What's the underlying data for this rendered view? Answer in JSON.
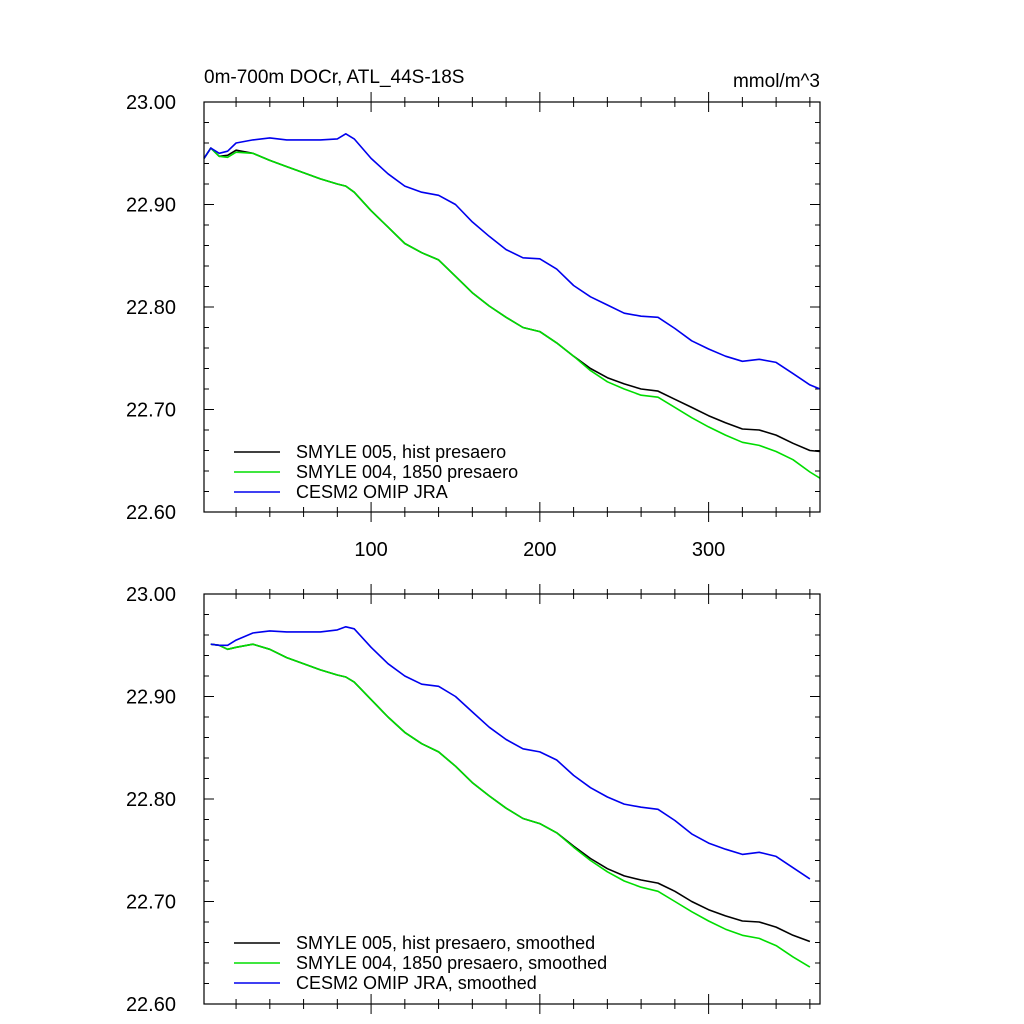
{
  "chart_data": [
    {
      "type": "line",
      "title": "0m-700m DOCr, ATL_44S-18S",
      "units": "mmol/m^3",
      "xlim": [
        1,
        366
      ],
      "ylim": [
        22.6,
        23.0
      ],
      "x_major_ticks": [
        100,
        200,
        300
      ],
      "x_tick_labels": [
        "100",
        "200",
        "300"
      ],
      "y_major_ticks": [
        22.6,
        22.7,
        22.8,
        22.9,
        23.0
      ],
      "y_tick_labels": [
        "22.60",
        "22.70",
        "22.80",
        "22.90",
        "23.00"
      ],
      "grid": false,
      "legend_position": "bottom-left",
      "series": [
        {
          "name": "SMYLE 005, hist presaero",
          "color": "#000000",
          "x": [
            1,
            5,
            10,
            15,
            20,
            30,
            40,
            50,
            60,
            70,
            80,
            85,
            90,
            100,
            110,
            120,
            130,
            140,
            150,
            160,
            170,
            180,
            190,
            200,
            210,
            220,
            230,
            240,
            250,
            260,
            270,
            280,
            290,
            300,
            310,
            320,
            330,
            340,
            350,
            360,
            366
          ],
          "y": [
            22.945,
            22.955,
            22.947,
            22.948,
            22.953,
            22.95,
            22.943,
            22.937,
            22.931,
            22.925,
            22.92,
            22.918,
            22.912,
            22.894,
            22.878,
            22.862,
            22.853,
            22.846,
            22.83,
            22.814,
            22.801,
            22.79,
            22.78,
            22.776,
            22.765,
            22.752,
            22.74,
            22.731,
            22.725,
            22.72,
            22.718,
            22.71,
            22.702,
            22.694,
            22.687,
            22.681,
            22.68,
            22.675,
            22.667,
            22.66,
            22.659
          ]
        },
        {
          "name": "SMYLE 004, 1850 presaero",
          "color": "#00dd00",
          "x": [
            1,
            5,
            10,
            15,
            20,
            30,
            40,
            50,
            60,
            70,
            80,
            85,
            90,
            100,
            110,
            120,
            130,
            140,
            150,
            160,
            170,
            180,
            190,
            200,
            210,
            220,
            230,
            240,
            250,
            260,
            270,
            280,
            290,
            300,
            310,
            320,
            330,
            340,
            350,
            360,
            366
          ],
          "y": [
            22.945,
            22.955,
            22.947,
            22.946,
            22.951,
            22.95,
            22.943,
            22.937,
            22.931,
            22.925,
            22.92,
            22.918,
            22.912,
            22.894,
            22.878,
            22.862,
            22.853,
            22.846,
            22.83,
            22.814,
            22.801,
            22.79,
            22.78,
            22.776,
            22.765,
            22.752,
            22.738,
            22.727,
            22.72,
            22.714,
            22.712,
            22.702,
            22.692,
            22.683,
            22.675,
            22.668,
            22.665,
            22.659,
            22.651,
            22.639,
            22.633
          ]
        },
        {
          "name": "CESM2 OMIP JRA",
          "color": "#0000ee",
          "x": [
            1,
            5,
            10,
            15,
            20,
            30,
            40,
            50,
            60,
            70,
            80,
            85,
            90,
            100,
            110,
            120,
            130,
            140,
            150,
            160,
            170,
            180,
            190,
            200,
            210,
            220,
            230,
            240,
            250,
            260,
            270,
            280,
            290,
            300,
            310,
            320,
            330,
            340,
            350,
            360,
            366
          ],
          "y": [
            22.945,
            22.955,
            22.95,
            22.952,
            22.96,
            22.963,
            22.965,
            22.963,
            22.963,
            22.963,
            22.964,
            22.969,
            22.964,
            22.945,
            22.93,
            22.918,
            22.912,
            22.909,
            22.9,
            22.883,
            22.869,
            22.856,
            22.848,
            22.847,
            22.837,
            22.821,
            22.81,
            22.802,
            22.794,
            22.791,
            22.79,
            22.779,
            22.767,
            22.759,
            22.752,
            22.747,
            22.749,
            22.746,
            22.735,
            22.724,
            22.72
          ]
        }
      ]
    },
    {
      "type": "line",
      "xlim": [
        1,
        366
      ],
      "ylim": [
        22.6,
        23.0
      ],
      "x_major_ticks": [
        100,
        200,
        300
      ],
      "y_major_ticks": [
        22.6,
        22.7,
        22.8,
        22.9,
        23.0
      ],
      "y_tick_labels": [
        "22.60",
        "22.70",
        "22.80",
        "22.90",
        "23.00"
      ],
      "grid": false,
      "legend_position": "bottom-left",
      "series": [
        {
          "name": "SMYLE 005, hist presaero, smoothed",
          "color": "#000000",
          "x": [
            5,
            10,
            15,
            20,
            30,
            40,
            50,
            60,
            70,
            80,
            85,
            90,
            100,
            110,
            120,
            130,
            140,
            150,
            160,
            170,
            180,
            190,
            200,
            210,
            220,
            230,
            240,
            250,
            260,
            270,
            280,
            290,
            300,
            310,
            320,
            330,
            340,
            350,
            360
          ],
          "y": [
            22.951,
            22.95,
            22.946,
            22.948,
            22.951,
            22.946,
            22.938,
            22.932,
            22.926,
            22.921,
            22.919,
            22.914,
            22.897,
            22.88,
            22.865,
            22.854,
            22.846,
            22.832,
            22.816,
            22.803,
            22.791,
            22.781,
            22.776,
            22.767,
            22.754,
            22.742,
            22.732,
            22.725,
            22.721,
            22.718,
            22.71,
            22.7,
            22.692,
            22.686,
            22.681,
            22.68,
            22.675,
            22.667,
            22.661
          ]
        },
        {
          "name": "SMYLE 004, 1850 presaero, smoothed",
          "color": "#00dd00",
          "x": [
            5,
            10,
            15,
            20,
            30,
            40,
            50,
            60,
            70,
            80,
            85,
            90,
            100,
            110,
            120,
            130,
            140,
            150,
            160,
            170,
            180,
            190,
            200,
            210,
            220,
            230,
            240,
            250,
            260,
            270,
            280,
            290,
            300,
            310,
            320,
            330,
            340,
            350,
            360
          ],
          "y": [
            22.951,
            22.95,
            22.946,
            22.948,
            22.951,
            22.946,
            22.938,
            22.932,
            22.926,
            22.921,
            22.919,
            22.914,
            22.897,
            22.88,
            22.865,
            22.854,
            22.846,
            22.832,
            22.816,
            22.803,
            22.791,
            22.781,
            22.776,
            22.767,
            22.753,
            22.74,
            22.729,
            22.72,
            22.714,
            22.71,
            22.7,
            22.69,
            22.681,
            22.673,
            22.667,
            22.664,
            22.657,
            22.646,
            22.636
          ]
        },
        {
          "name": "CESM2 OMIP JRA, smoothed",
          "color": "#0000ee",
          "x": [
            5,
            10,
            15,
            20,
            30,
            40,
            50,
            60,
            70,
            80,
            85,
            90,
            100,
            110,
            120,
            130,
            140,
            150,
            160,
            170,
            180,
            190,
            200,
            210,
            220,
            230,
            240,
            250,
            260,
            270,
            280,
            290,
            300,
            310,
            320,
            330,
            340,
            350,
            360
          ],
          "y": [
            22.951,
            22.95,
            22.95,
            22.955,
            22.962,
            22.964,
            22.963,
            22.963,
            22.963,
            22.965,
            22.968,
            22.966,
            22.948,
            22.932,
            22.92,
            22.912,
            22.91,
            22.9,
            22.885,
            22.87,
            22.858,
            22.849,
            22.846,
            22.838,
            22.823,
            22.811,
            22.802,
            22.795,
            22.792,
            22.79,
            22.779,
            22.766,
            22.757,
            22.751,
            22.746,
            22.748,
            22.744,
            22.733,
            22.722
          ]
        }
      ]
    }
  ]
}
